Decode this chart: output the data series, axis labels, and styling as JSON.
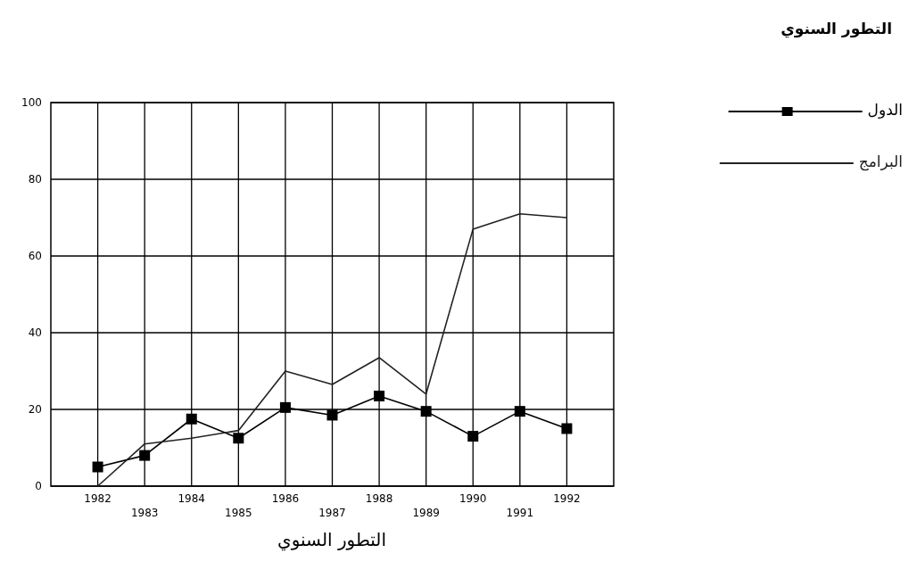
{
  "chart_data": {
    "type": "line",
    "title": "التطور السنوي",
    "xlabel": "التطور السنوي",
    "categories": [
      "1982",
      "1983",
      "1984",
      "1985",
      "1986",
      "1987",
      "1988",
      "1989",
      "1990",
      "1991",
      "1992"
    ],
    "series": [
      {
        "name": "الدول",
        "color": "#000000",
        "marker": "square",
        "values": [
          5,
          8,
          17.5,
          12.5,
          20.5,
          18.5,
          23.5,
          19.5,
          13,
          19.5,
          15
        ]
      },
      {
        "name": "البرامج",
        "color": "#222222",
        "marker": "none",
        "values": [
          0,
          11,
          12.5,
          14.5,
          30,
          26.5,
          33.5,
          24,
          67,
          71,
          70
        ]
      }
    ],
    "ylim": [
      0,
      100
    ],
    "yticks": [
      0,
      20,
      40,
      60,
      80,
      100
    ],
    "grid": true,
    "legend": "right",
    "line_style": "solid"
  }
}
